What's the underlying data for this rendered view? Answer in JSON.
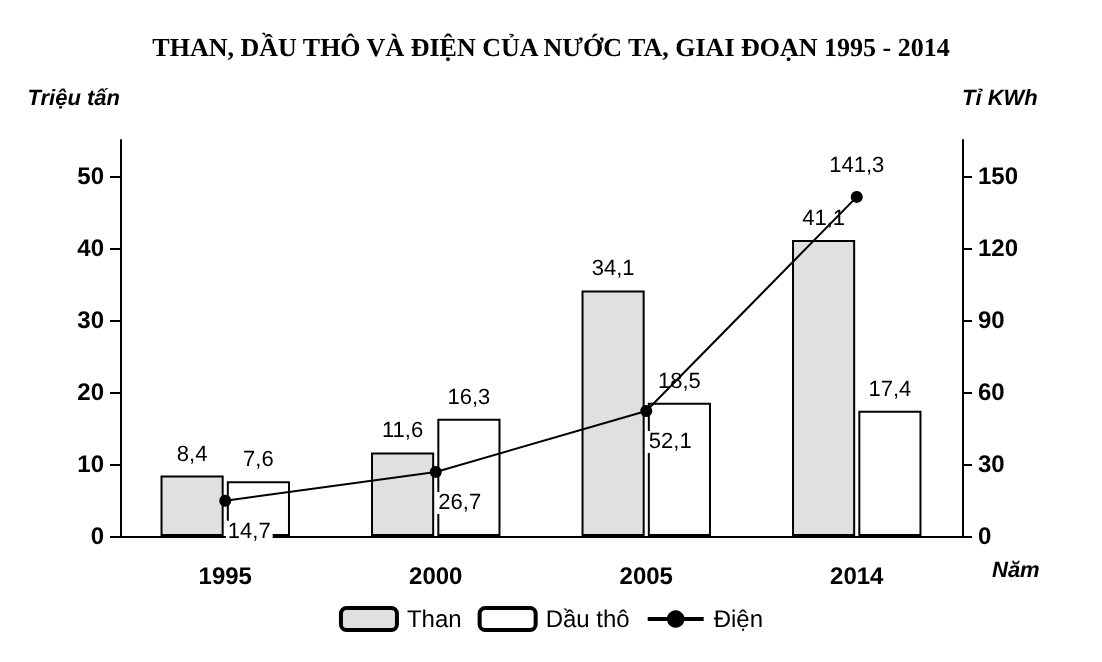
{
  "chart_data": {
    "type": "bar",
    "title": "THAN, DẦU THÔ VÀ ĐIỆN CỦA NƯỚC TA, GIAI ĐOẠN 1995 - 2014",
    "xlabel": "Năm",
    "ylabel": "Triệu tấn",
    "y2label": "Tỉ KWh",
    "categories": [
      "1995",
      "2000",
      "2005",
      "2014"
    ],
    "series": [
      {
        "name": "Than",
        "color": "#e0e0e0",
        "values": [
          8.4,
          11.6,
          34.1,
          41.1
        ],
        "value_labels": [
          "8,4",
          "11,6",
          "34,1",
          "41,1"
        ]
      },
      {
        "name": "Dầu thô",
        "color": "#ffffff",
        "values": [
          7.6,
          16.3,
          18.5,
          17.4
        ],
        "value_labels": [
          "7,6",
          "16,3",
          "18,5",
          "17,4"
        ]
      },
      {
        "name": "Điện",
        "type": "line",
        "axis": "y2",
        "color": "#000000",
        "marker": "circle",
        "values": [
          14.7,
          26.7,
          52.1,
          141.3
        ],
        "value_labels": [
          "14,7",
          "26,7",
          "52,1",
          "141,3"
        ]
      }
    ],
    "ylim": [
      0,
      55
    ],
    "yticks": [
      0,
      10,
      20,
      30,
      40,
      50
    ],
    "y2lim": [
      0,
      165
    ],
    "y2ticks": [
      0,
      30,
      60,
      90,
      120,
      150
    ],
    "grid": false,
    "legend": "bottom"
  }
}
